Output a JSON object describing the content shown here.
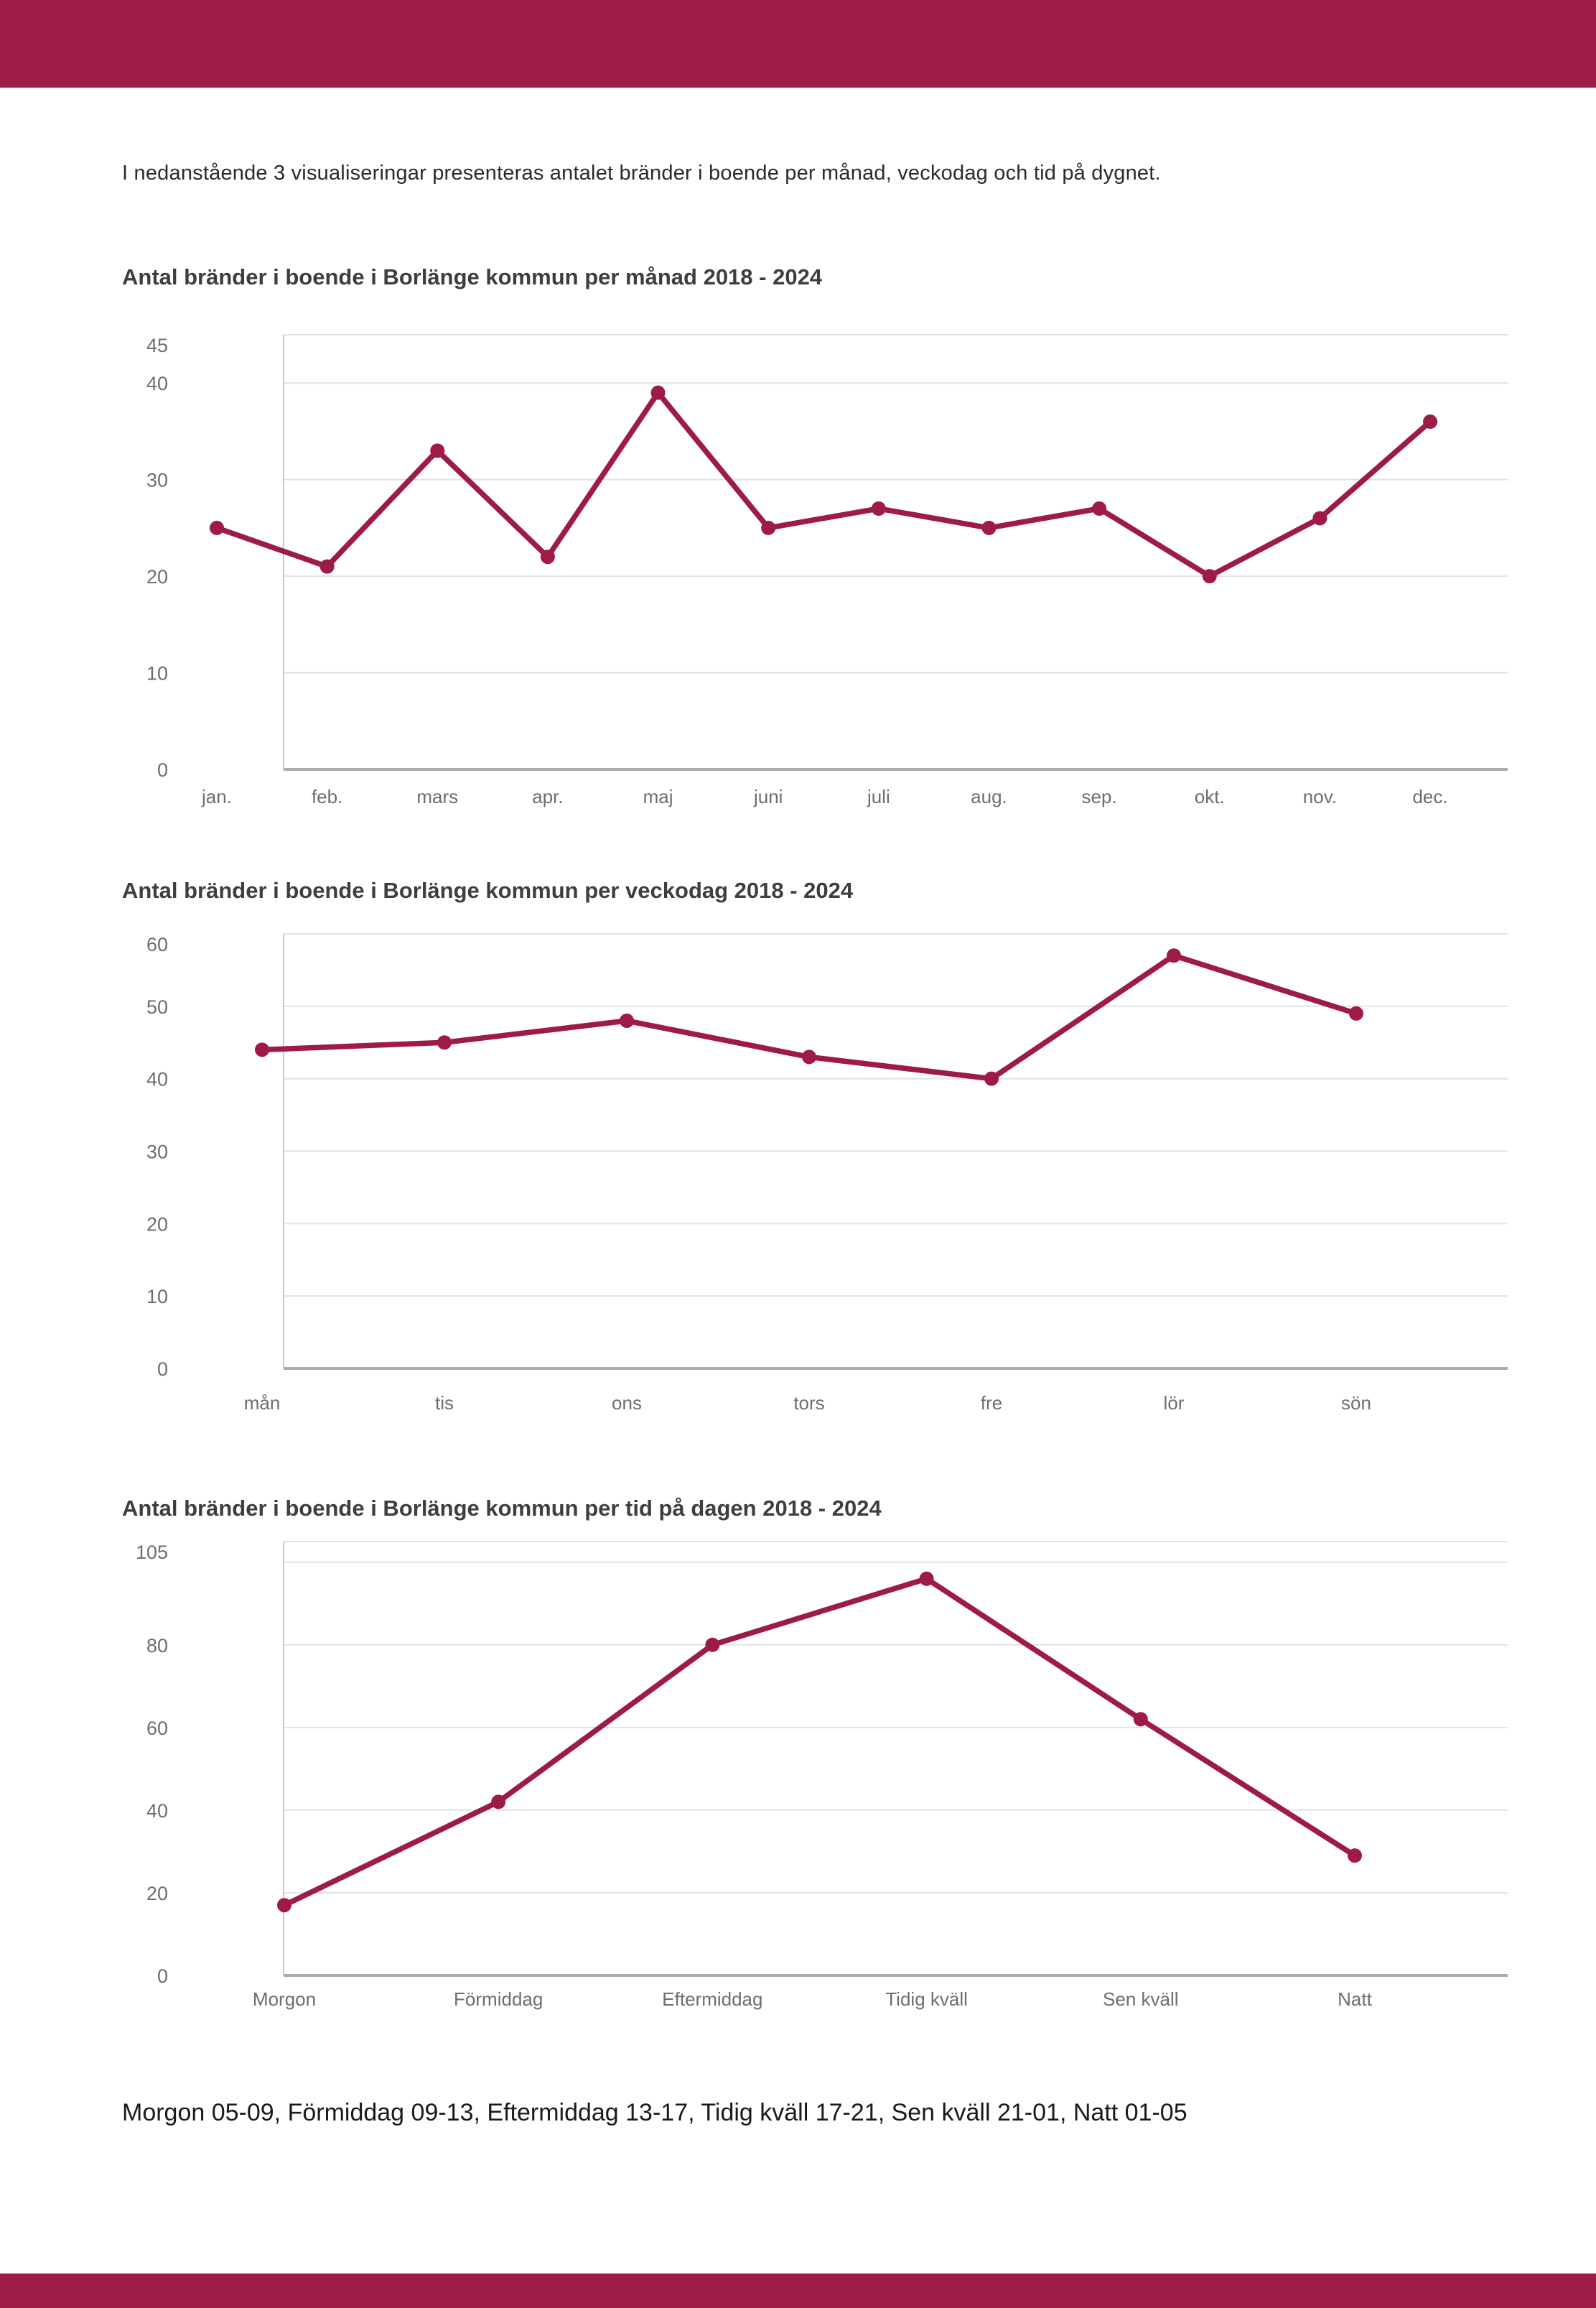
{
  "page": {
    "intro": "I nedanstående 3 visualiseringar presenteras antalet bränder i boende per månad, veckodag och tid på dygnet.",
    "footer_note": "Morgon 05-09, Förmiddag 09-13, Eftermiddag 13-17, Tidig kväll 17-21, Sen kväll 21-01, Natt 01-05",
    "accent_color": "#9e1b49"
  },
  "chart_data": [
    {
      "type": "line",
      "title": "Antal bränder i boende i Borlänge kommun per månad 2018 - 2024",
      "categories": [
        "jan.",
        "feb.",
        "mars",
        "apr.",
        "maj",
        "juni",
        "juli",
        "aug.",
        "sep.",
        "okt.",
        "nov.",
        "dec."
      ],
      "values": [
        25,
        21,
        33,
        22,
        39,
        25,
        27,
        25,
        27,
        20,
        26,
        36
      ],
      "yticks": [
        45,
        40,
        30,
        20,
        10,
        0
      ],
      "ylim": [
        0,
        45
      ],
      "xlabel": "",
      "ylabel": "",
      "grid": true,
      "legend": "none",
      "line_color": "#9e1b49"
    },
    {
      "type": "line",
      "title": "Antal bränder i boende i Borlänge kommun per veckodag 2018 - 2024",
      "categories": [
        "mån",
        "tis",
        "ons",
        "tors",
        "fre",
        "lör",
        "sön"
      ],
      "values": [
        44,
        45,
        48,
        43,
        40,
        57,
        49
      ],
      "yticks": [
        60,
        50,
        40,
        30,
        20,
        10,
        0
      ],
      "ylim": [
        0,
        60
      ],
      "xlabel": "",
      "ylabel": "",
      "grid": true,
      "legend": "none",
      "line_color": "#9e1b49"
    },
    {
      "type": "line",
      "title": "Antal bränder i boende i Borlänge kommun per tid på dagen 2018 - 2024",
      "categories": [
        "Morgon",
        "Förmiddag",
        "Eftermiddag",
        "Tidig kväll",
        "Sen kväll",
        "Natt"
      ],
      "values": [
        17,
        42,
        80,
        96,
        62,
        29
      ],
      "yticks": [
        105,
        80,
        60,
        40,
        20,
        0
      ],
      "extra_gridlines": [
        100
      ],
      "ylim": [
        0,
        105
      ],
      "xlabel": "",
      "ylabel": "",
      "grid": true,
      "legend": "none",
      "line_color": "#9e1b49"
    }
  ]
}
